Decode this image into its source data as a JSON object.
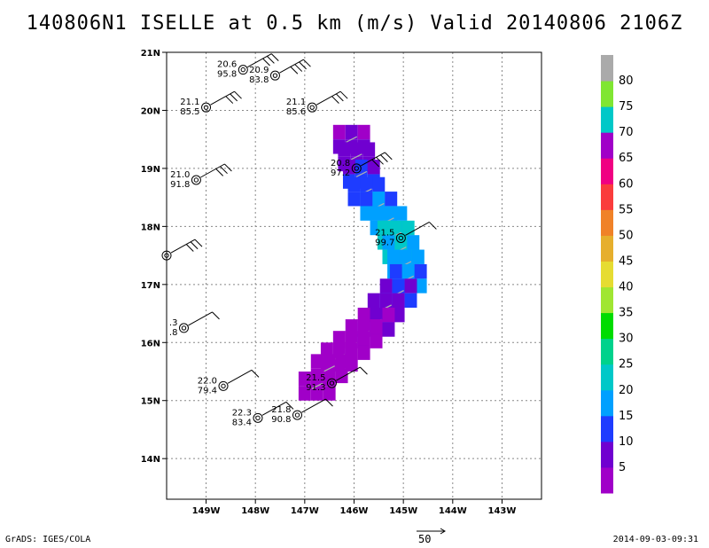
{
  "title": "140806N1 ISELLE at 0.5 km (m/s) Valid 20140806 2106Z",
  "footer": {
    "left": "GrADS: IGES/COLA",
    "right": "2014-09-03-09:31",
    "vector_scale": "50"
  },
  "chart_data": {
    "type": "heatmap",
    "title": "140806N1 ISELLE at 0.5 km (m/s) Valid 20140806 2106Z",
    "xlim": [
      -149.8,
      -142.2
    ],
    "ylim": [
      13.3,
      21.0
    ],
    "x_ticks": [
      {
        "value": -149,
        "label": "149W"
      },
      {
        "value": -148,
        "label": "148W"
      },
      {
        "value": -147,
        "label": "147W"
      },
      {
        "value": -146,
        "label": "146W"
      },
      {
        "value": -145,
        "label": "145W"
      },
      {
        "value": -144,
        "label": "144W"
      },
      {
        "value": -143,
        "label": "143W"
      }
    ],
    "y_ticks": [
      {
        "value": 14,
        "label": "14N"
      },
      {
        "value": 15,
        "label": "15N"
      },
      {
        "value": 16,
        "label": "16N"
      },
      {
        "value": 17,
        "label": "17N"
      },
      {
        "value": 18,
        "label": "18N"
      },
      {
        "value": 19,
        "label": "19N"
      },
      {
        "value": 20,
        "label": "20N"
      },
      {
        "value": 21,
        "label": "21N"
      }
    ],
    "grid": true,
    "colorbar": {
      "levels": [
        {
          "label": "",
          "color": "#a000c8"
        },
        {
          "label": "5",
          "color": "#7000d0"
        },
        {
          "label": "10",
          "color": "#1e3cff"
        },
        {
          "label": "15",
          "color": "#00a0ff"
        },
        {
          "label": "20",
          "color": "#00c8c8"
        },
        {
          "label": "25",
          "color": "#00d28c"
        },
        {
          "label": "30",
          "color": "#00dc00"
        },
        {
          "label": "35",
          "color": "#a0e632"
        },
        {
          "label": "40",
          "color": "#e6dc32"
        },
        {
          "label": "45",
          "color": "#e6af2d"
        },
        {
          "label": "50",
          "color": "#f08228"
        },
        {
          "label": "55",
          "color": "#fa3c3c"
        },
        {
          "label": "60",
          "color": "#f00082"
        },
        {
          "label": "65",
          "color": "#a000c8"
        },
        {
          "label": "70",
          "color": "#00c8c8"
        },
        {
          "label": "75",
          "color": "#80e632"
        },
        {
          "label": "80",
          "color": "#aaaaaa"
        }
      ]
    },
    "wind_field_cells": [
      {
        "lon": -146.05,
        "lat": 19.5,
        "value": 8
      },
      {
        "lon": -145.95,
        "lat": 19.2,
        "value": 9
      },
      {
        "lon": -145.85,
        "lat": 18.9,
        "value": 12
      },
      {
        "lon": -145.75,
        "lat": 18.6,
        "value": 15
      },
      {
        "lon": -145.5,
        "lat": 18.35,
        "value": 18
      },
      {
        "lon": -145.3,
        "lat": 18.1,
        "value": 21
      },
      {
        "lon": -145.15,
        "lat": 17.85,
        "value": 24
      },
      {
        "lon": -145.05,
        "lat": 17.6,
        "value": 22
      },
      {
        "lon": -144.95,
        "lat": 17.35,
        "value": 20
      },
      {
        "lon": -144.9,
        "lat": 17.1,
        "value": 17
      },
      {
        "lon": -145.1,
        "lat": 16.85,
        "value": 13
      },
      {
        "lon": -145.35,
        "lat": 16.6,
        "value": 10
      },
      {
        "lon": -145.55,
        "lat": 16.35,
        "value": 7
      },
      {
        "lon": -145.8,
        "lat": 16.15,
        "value": 5
      },
      {
        "lon": -146.05,
        "lat": 15.95,
        "value": 4
      },
      {
        "lon": -146.3,
        "lat": 15.75,
        "value": 3
      },
      {
        "lon": -146.5,
        "lat": 15.55,
        "value": 4
      },
      {
        "lon": -146.75,
        "lat": 15.25,
        "value": 3
      }
    ],
    "observations": [
      {
        "lon": -148.25,
        "lat": 20.7,
        "sst": "20.6",
        "rh": "95.8",
        "barbs": 3
      },
      {
        "lon": -147.6,
        "lat": 20.6,
        "sst": "20.9",
        "rh": "83.8",
        "barbs": 4
      },
      {
        "lon": -149.0,
        "lat": 20.05,
        "sst": "21.1",
        "rh": "85.5",
        "barbs": 3
      },
      {
        "lon": -146.85,
        "lat": 20.05,
        "sst": "21.1",
        "rh": "85.6",
        "barbs": 3
      },
      {
        "lon": -145.95,
        "lat": 19.0,
        "sst": "20.8",
        "rh": "97.2",
        "barbs": 4
      },
      {
        "lon": -149.2,
        "lat": 18.8,
        "sst": "21.0",
        "rh": "91.8",
        "barbs": 3
      },
      {
        "lon": -149.8,
        "lat": 17.5,
        "sst": "",
        "rh": "",
        "barbs": 3
      },
      {
        "lon": -145.05,
        "lat": 17.8,
        "sst": "21.5",
        "rh": "99.7",
        "barbs": 1
      },
      {
        "lon": -149.45,
        "lat": 16.25,
        "sst": ".3",
        "rh": ".8",
        "barbs": 1
      },
      {
        "lon": -148.65,
        "lat": 15.25,
        "sst": "22.0",
        "rh": "79.4",
        "barbs": 1
      },
      {
        "lon": -146.45,
        "lat": 15.3,
        "sst": "21.5",
        "rh": "91.3",
        "barbs": 1
      },
      {
        "lon": -147.95,
        "lat": 14.7,
        "sst": "22.3",
        "rh": "83.4",
        "barbs": 1
      },
      {
        "lon": -147.15,
        "lat": 14.75,
        "sst": "21.8",
        "rh": "90.8",
        "barbs": 1
      }
    ]
  }
}
